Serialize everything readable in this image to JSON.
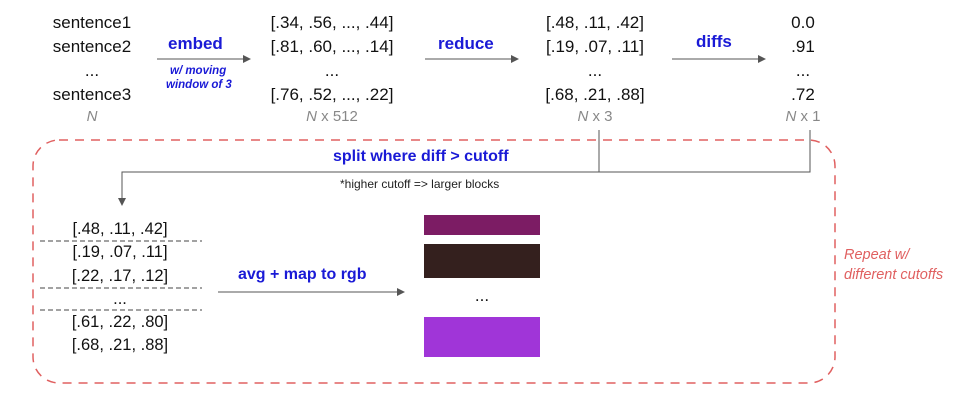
{
  "top_row": {
    "sentences": [
      "sentence1",
      "sentence2",
      "...",
      "sentence3"
    ],
    "sentences_dim": {
      "var": "N",
      "rest": ""
    },
    "embed_label": "embed",
    "embed_note": [
      "w/ moving",
      "window of 3"
    ],
    "embeddings": [
      "[.34, .56, ..., .44]",
      "[.81, .60, ..., .14]",
      "...",
      "[.76, .52, ..., .22]"
    ],
    "embeddings_dim": {
      "var": "N",
      "rest": " x 512"
    },
    "reduce_label": "reduce",
    "reduced": [
      "[.48, .11, .42]",
      "[.19, .07, .11]",
      "...",
      "[.68, .21, .88]"
    ],
    "reduced_dim": {
      "var": "N",
      "rest": " x 3"
    },
    "diffs_label": "diffs",
    "diffs": [
      "0.0",
      ".91",
      "...",
      ".72"
    ],
    "diffs_dim": {
      "var": "N",
      "rest": " x 1"
    }
  },
  "loop": {
    "split_label": "split where diff > cutoff",
    "split_note": "*higher cutoff => larger blocks",
    "blocks": [
      "[.48, .11, .42]",
      "[.19, .07, .11]",
      "[.22, .17, .12]",
      "...",
      "[.61, .22, .80]",
      "[.68, .21, .88]"
    ],
    "avg_label": "avg + map to rgb",
    "swatches": [
      {
        "color": "#7c1c64"
      },
      {
        "color": "#34201e"
      },
      {
        "color": "#a035d8"
      }
    ],
    "swatch_ellipsis": "...",
    "repeat_label": "Repeat w/ different cutoffs"
  },
  "colors": {
    "loop_border": "#e06060",
    "arrow": "#555555",
    "label_blue": "#1a1ad6"
  }
}
